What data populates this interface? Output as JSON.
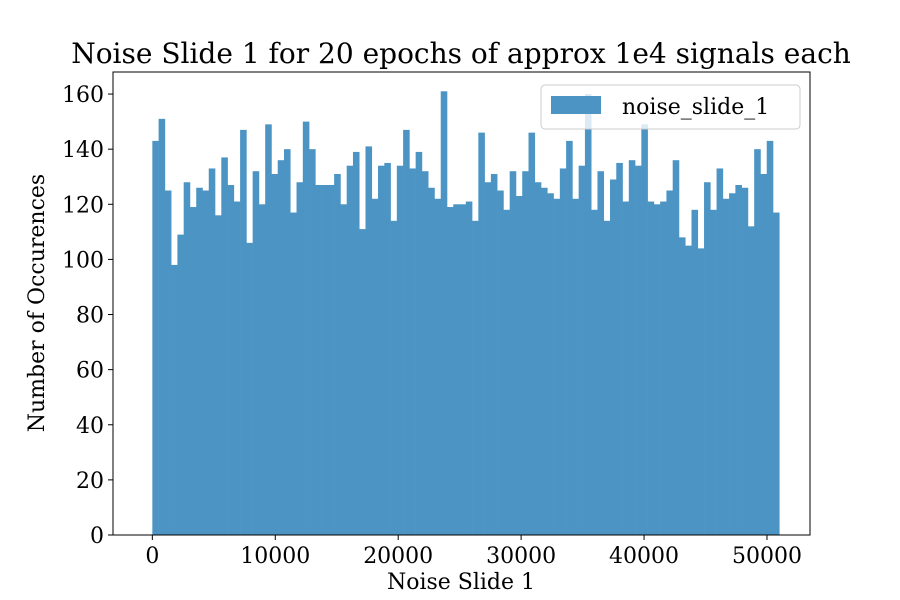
{
  "chart_data": {
    "type": "bar",
    "title": "Noise Slide 1 for 20 epochs of approx 1e4 signals each",
    "xlabel": "Noise Slide 1",
    "ylabel": "Number of Occurences",
    "xlim": [
      -3200,
      53500
    ],
    "ylim": [
      0,
      168
    ],
    "x_ticks": [
      0,
      10000,
      20000,
      30000,
      40000,
      50000
    ],
    "y_ticks": [
      0,
      20,
      40,
      60,
      80,
      100,
      120,
      140,
      160
    ],
    "grid": false,
    "legend": {
      "position": "top-right",
      "entries": [
        "noise_slide_1"
      ]
    },
    "bin_start": 0,
    "bin_width": 510,
    "series": [
      {
        "name": "noise_slide_1",
        "color": "#4c94c4",
        "values": [
          143,
          151,
          125,
          98,
          109,
          128,
          119,
          126,
          125,
          133,
          116,
          137,
          127,
          121,
          147,
          106,
          132,
          120,
          149,
          131,
          136,
          140,
          117,
          128,
          150,
          140,
          127,
          127,
          127,
          131,
          120,
          134,
          139,
          111,
          141,
          122,
          134,
          135,
          114,
          134,
          147,
          133,
          139,
          132,
          126,
          122,
          161,
          119,
          120,
          120,
          121,
          114,
          146,
          128,
          131,
          125,
          118,
          132,
          123,
          132,
          146,
          128,
          126,
          124,
          122,
          133,
          143,
          122,
          134,
          160,
          118,
          132,
          114,
          129,
          135,
          121,
          136,
          134,
          149,
          121,
          120,
          121,
          125,
          136,
          108,
          105,
          118,
          104,
          128,
          118,
          133,
          122,
          124,
          127,
          126,
          112,
          140,
          131,
          143,
          117
        ]
      }
    ]
  }
}
